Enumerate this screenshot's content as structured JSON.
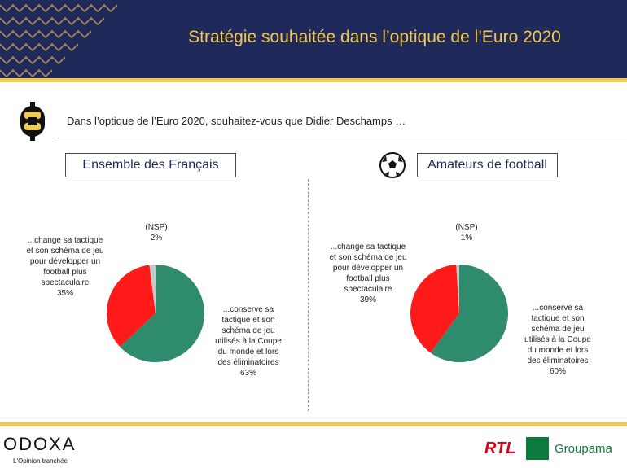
{
  "header": {
    "title": "Stratégie souhaitée dans l’optique de l’Euro 2020"
  },
  "question": {
    "text": "Dans l’optique de l’Euro 2020, souhaitez-vous que Didier Deschamps …"
  },
  "colors": {
    "navy": "#1f2a5a",
    "gold": "#f2c94c",
    "green": "#2e8b6e",
    "red": "#ff1a1a",
    "grey": "#c8c8c8"
  },
  "icons": {
    "question": "odoxa-question-icon",
    "ball": "football-icon"
  },
  "chart_data": [
    {
      "type": "pie",
      "title": "Ensemble des Français",
      "labels": {
        "nsp": [
          "(NSP)",
          "2%"
        ],
        "change": [
          "...change sa tactique",
          "et son schéma de jeu",
          "pour développer un",
          "football plus",
          "spectaculaire",
          "35%"
        ],
        "conserve": [
          "...conserve sa",
          "tactique et son",
          "schéma de jeu",
          "utilisés à la Coupe",
          "du monde et lors",
          "des éliminatoires",
          "63%"
        ]
      },
      "slices": [
        {
          "label": "...conserve sa tactique et son schéma de jeu utilisés à la Coupe du monde et lors des éliminatoires",
          "value": 63,
          "color": "#2e8b6e"
        },
        {
          "label": "...change sa tactique et son schéma de jeu pour développer un football plus spectaculaire",
          "value": 35,
          "color": "#ff1a1a"
        },
        {
          "label": "(NSP)",
          "value": 2,
          "color": "#c8c8c8"
        }
      ]
    },
    {
      "type": "pie",
      "title": "Amateurs de football",
      "labels": {
        "nsp": [
          "(NSP)",
          "1%"
        ],
        "change": [
          "...change sa tactique",
          "et son schéma de jeu",
          "pour développer un",
          "football plus",
          "spectaculaire",
          "39%"
        ],
        "conserve": [
          "...conserve sa",
          "tactique et son",
          "schéma de jeu",
          "utilisés à la Coupe",
          "du monde et lors",
          "des éliminatoires",
          "60%"
        ]
      },
      "slices": [
        {
          "label": "...conserve sa tactique et son schéma de jeu utilisés à la Coupe du monde et lors des éliminatoires",
          "value": 60,
          "color": "#2e8b6e"
        },
        {
          "label": "...change sa tactique et son schéma de jeu pour développer un football plus spectaculaire",
          "value": 39,
          "color": "#ff1a1a"
        },
        {
          "label": "(NSP)",
          "value": 1,
          "color": "#c8c8c8"
        }
      ]
    }
  ],
  "footer": {
    "brand": "ODOXA",
    "tagline": "L'Opinion tranchée",
    "partner1": "RTL",
    "partner2": "Groupama"
  }
}
